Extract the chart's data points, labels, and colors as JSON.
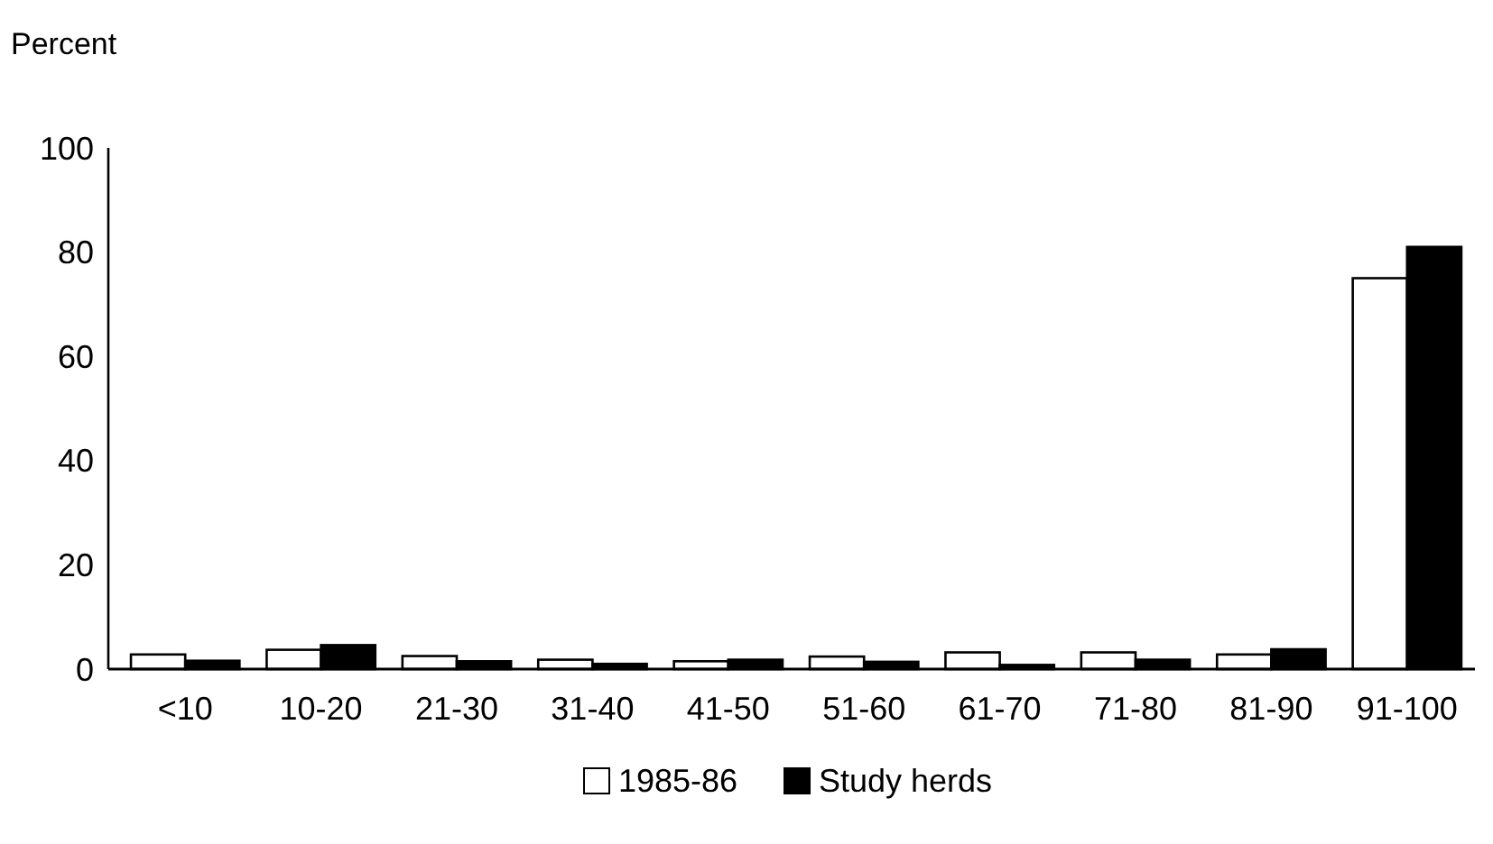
{
  "chart_data": {
    "type": "bar",
    "ylabel": "Percent",
    "categories": [
      "<10",
      "10-20",
      "21-30",
      "31-40",
      "41-50",
      "51-60",
      "61-70",
      "71-80",
      "81-90",
      "91-100"
    ],
    "series": [
      {
        "name": "1985-86",
        "color": "#ffffff",
        "values": [
          2.8,
          3.7,
          2.5,
          1.8,
          1.5,
          2.4,
          3.2,
          3.2,
          2.8,
          75
        ]
      },
      {
        "name": "Study herds",
        "color": "#000000",
        "values": [
          1.6,
          4.6,
          1.5,
          1.0,
          1.8,
          1.4,
          0.8,
          1.8,
          3.8,
          81
        ]
      }
    ],
    "ylim": [
      0,
      100
    ],
    "yticks": [
      0,
      20,
      40,
      60,
      80,
      100
    ],
    "legend": "bottom",
    "grid": false
  }
}
